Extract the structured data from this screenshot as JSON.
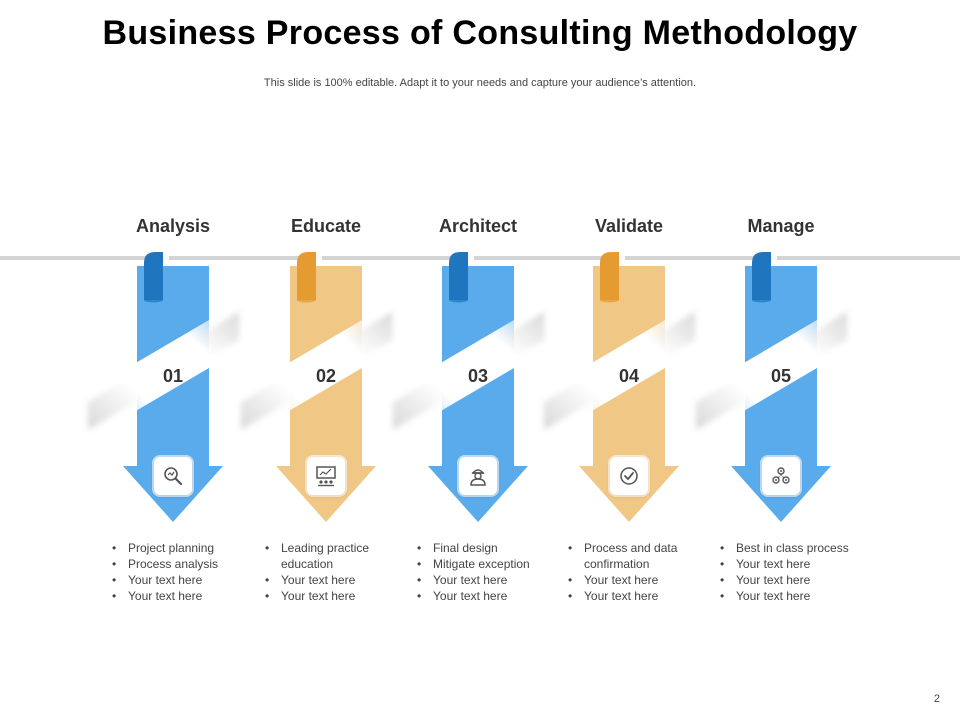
{
  "title": "Business Process of Consulting Methodology",
  "subtitle": "This slide is 100% editable. Adapt it to your needs and capture your audience’s attention.",
  "page_number": "2",
  "colors": {
    "blue": "#5aabeb",
    "blue_dark": "#1f76bf",
    "orange": "#f0c784",
    "orange_dark": "#e49b2f",
    "rail": "#d4d4d4"
  },
  "steps": [
    {
      "label": "Analysis",
      "number": "01",
      "color": "blue",
      "icon": "magnifier-analysis-icon",
      "bullets": [
        "Project planning",
        "Process analysis",
        "Your text here",
        "Your text here"
      ]
    },
    {
      "label": "Educate",
      "number": "02",
      "color": "orange",
      "icon": "presentation-board-icon",
      "bullets": [
        "Leading practice education",
        "Your text here",
        "Your text here"
      ]
    },
    {
      "label": "Architect",
      "number": "03",
      "color": "blue",
      "icon": "architect-worker-icon",
      "bullets": [
        "Final design",
        "Mitigate exception",
        "Your text here",
        "Your text here"
      ]
    },
    {
      "label": "Validate",
      "number": "04",
      "color": "orange",
      "icon": "checkmark-circle-icon",
      "bullets": [
        "Process and data confirmation",
        "Your text here",
        "Your text here"
      ]
    },
    {
      "label": "Manage",
      "number": "05",
      "color": "blue",
      "icon": "gears-manage-icon",
      "bullets": [
        "Best in class process",
        "Your text here",
        "Your text here",
        "Your text here"
      ]
    }
  ]
}
